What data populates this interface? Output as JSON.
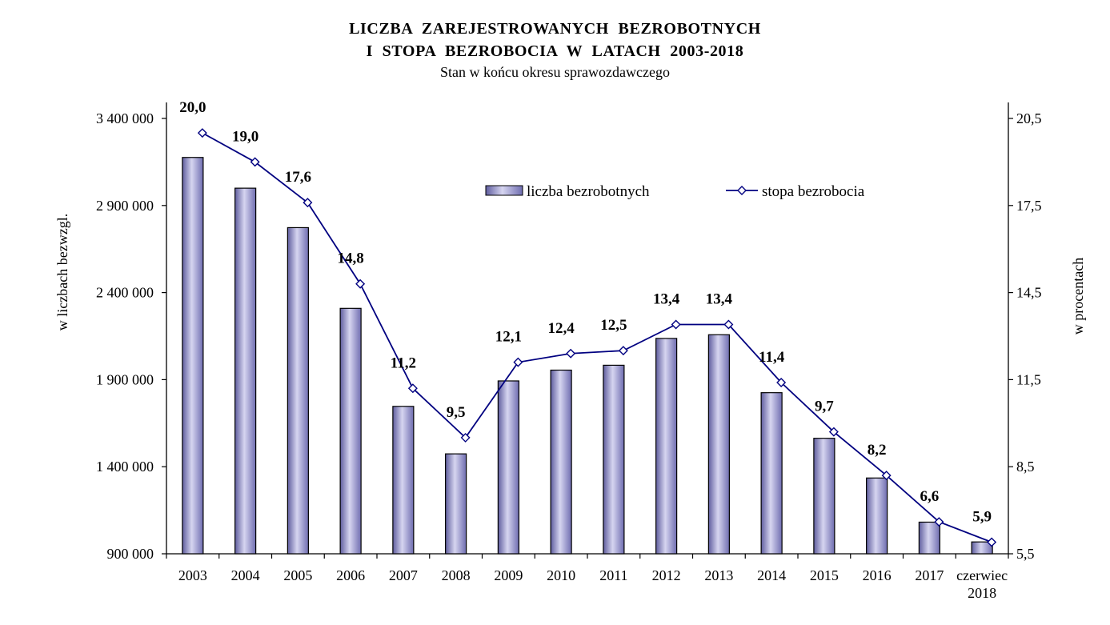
{
  "header": {
    "title_line1": "LICZBA   ZAREJESTROWANYCH   BEZROBOTNYCH",
    "title_line2": "I  STOPA  BEZROBOCIA  W  LATACH  2003-2018",
    "subtitle": "Stan w końcu okresu  sprawozdawczego"
  },
  "chart_data": {
    "type": "bar",
    "title": "LICZBA ZAREJESTROWANYCH BEZROBOTNYCH I STOPA BEZROBOCIA W LATACH 2003-2018",
    "subtitle": "Stan w końcu okresu  sprawozdawczego",
    "categories": [
      [
        "2003"
      ],
      [
        "2004"
      ],
      [
        "2005"
      ],
      [
        "2006"
      ],
      [
        "2007"
      ],
      [
        "2008"
      ],
      [
        "2009"
      ],
      [
        "2010"
      ],
      [
        "2011"
      ],
      [
        "2012"
      ],
      [
        "2013"
      ],
      [
        "2014"
      ],
      [
        "2015"
      ],
      [
        "2016"
      ],
      [
        "2017"
      ],
      [
        "czerwiec",
        "2018"
      ]
    ],
    "series": [
      {
        "name": "liczba bezrobotnych",
        "type": "bar",
        "axis": "left",
        "color": "#9a98cc",
        "values": [
          3176000,
          2999600,
          2773000,
          2309400,
          1746600,
          1473800,
          1892700,
          1954700,
          1982700,
          2136800,
          2157900,
          1825200,
          1563300,
          1335200,
          1081700,
          968100
        ]
      },
      {
        "name": "stopa bezrobocia",
        "type": "line",
        "axis": "right",
        "color": "#000080",
        "values": [
          20.0,
          19.0,
          17.6,
          14.8,
          11.2,
          9.5,
          12.1,
          12.4,
          12.5,
          13.4,
          13.4,
          11.4,
          9.7,
          8.2,
          6.6,
          5.9
        ],
        "labels": [
          "20,0",
          "19,0",
          "17,6",
          "14,8",
          "11,2",
          "9,5",
          "12,1",
          "12,4",
          "12,5",
          "13,4",
          "13,4",
          "11,4",
          "9,7",
          "8,2",
          "6,6",
          "5,9"
        ]
      }
    ],
    "y_left": {
      "label": "w liczbach bezwzgl.",
      "ylim": [
        900000,
        3400000
      ],
      "ticks": [
        900000,
        1400000,
        1900000,
        2400000,
        2900000,
        3400000
      ],
      "tick_labels": [
        "900 000",
        "1 400 000",
        "1 900 000",
        "2 400 000",
        "2 900 000",
        "3 400 000"
      ]
    },
    "y_right": {
      "label": "w procentach",
      "ylim": [
        5.5,
        20.5
      ],
      "ticks": [
        5.5,
        8.5,
        11.5,
        14.5,
        17.5,
        20.5
      ],
      "tick_labels": [
        "5,5",
        "8,5",
        "11,5",
        "14,5",
        "17,5",
        "20,5"
      ]
    },
    "grid": false,
    "legend": {
      "position": "top-center",
      "entries": [
        "liczba bezrobotnych",
        "stopa bezrobocia"
      ]
    }
  }
}
